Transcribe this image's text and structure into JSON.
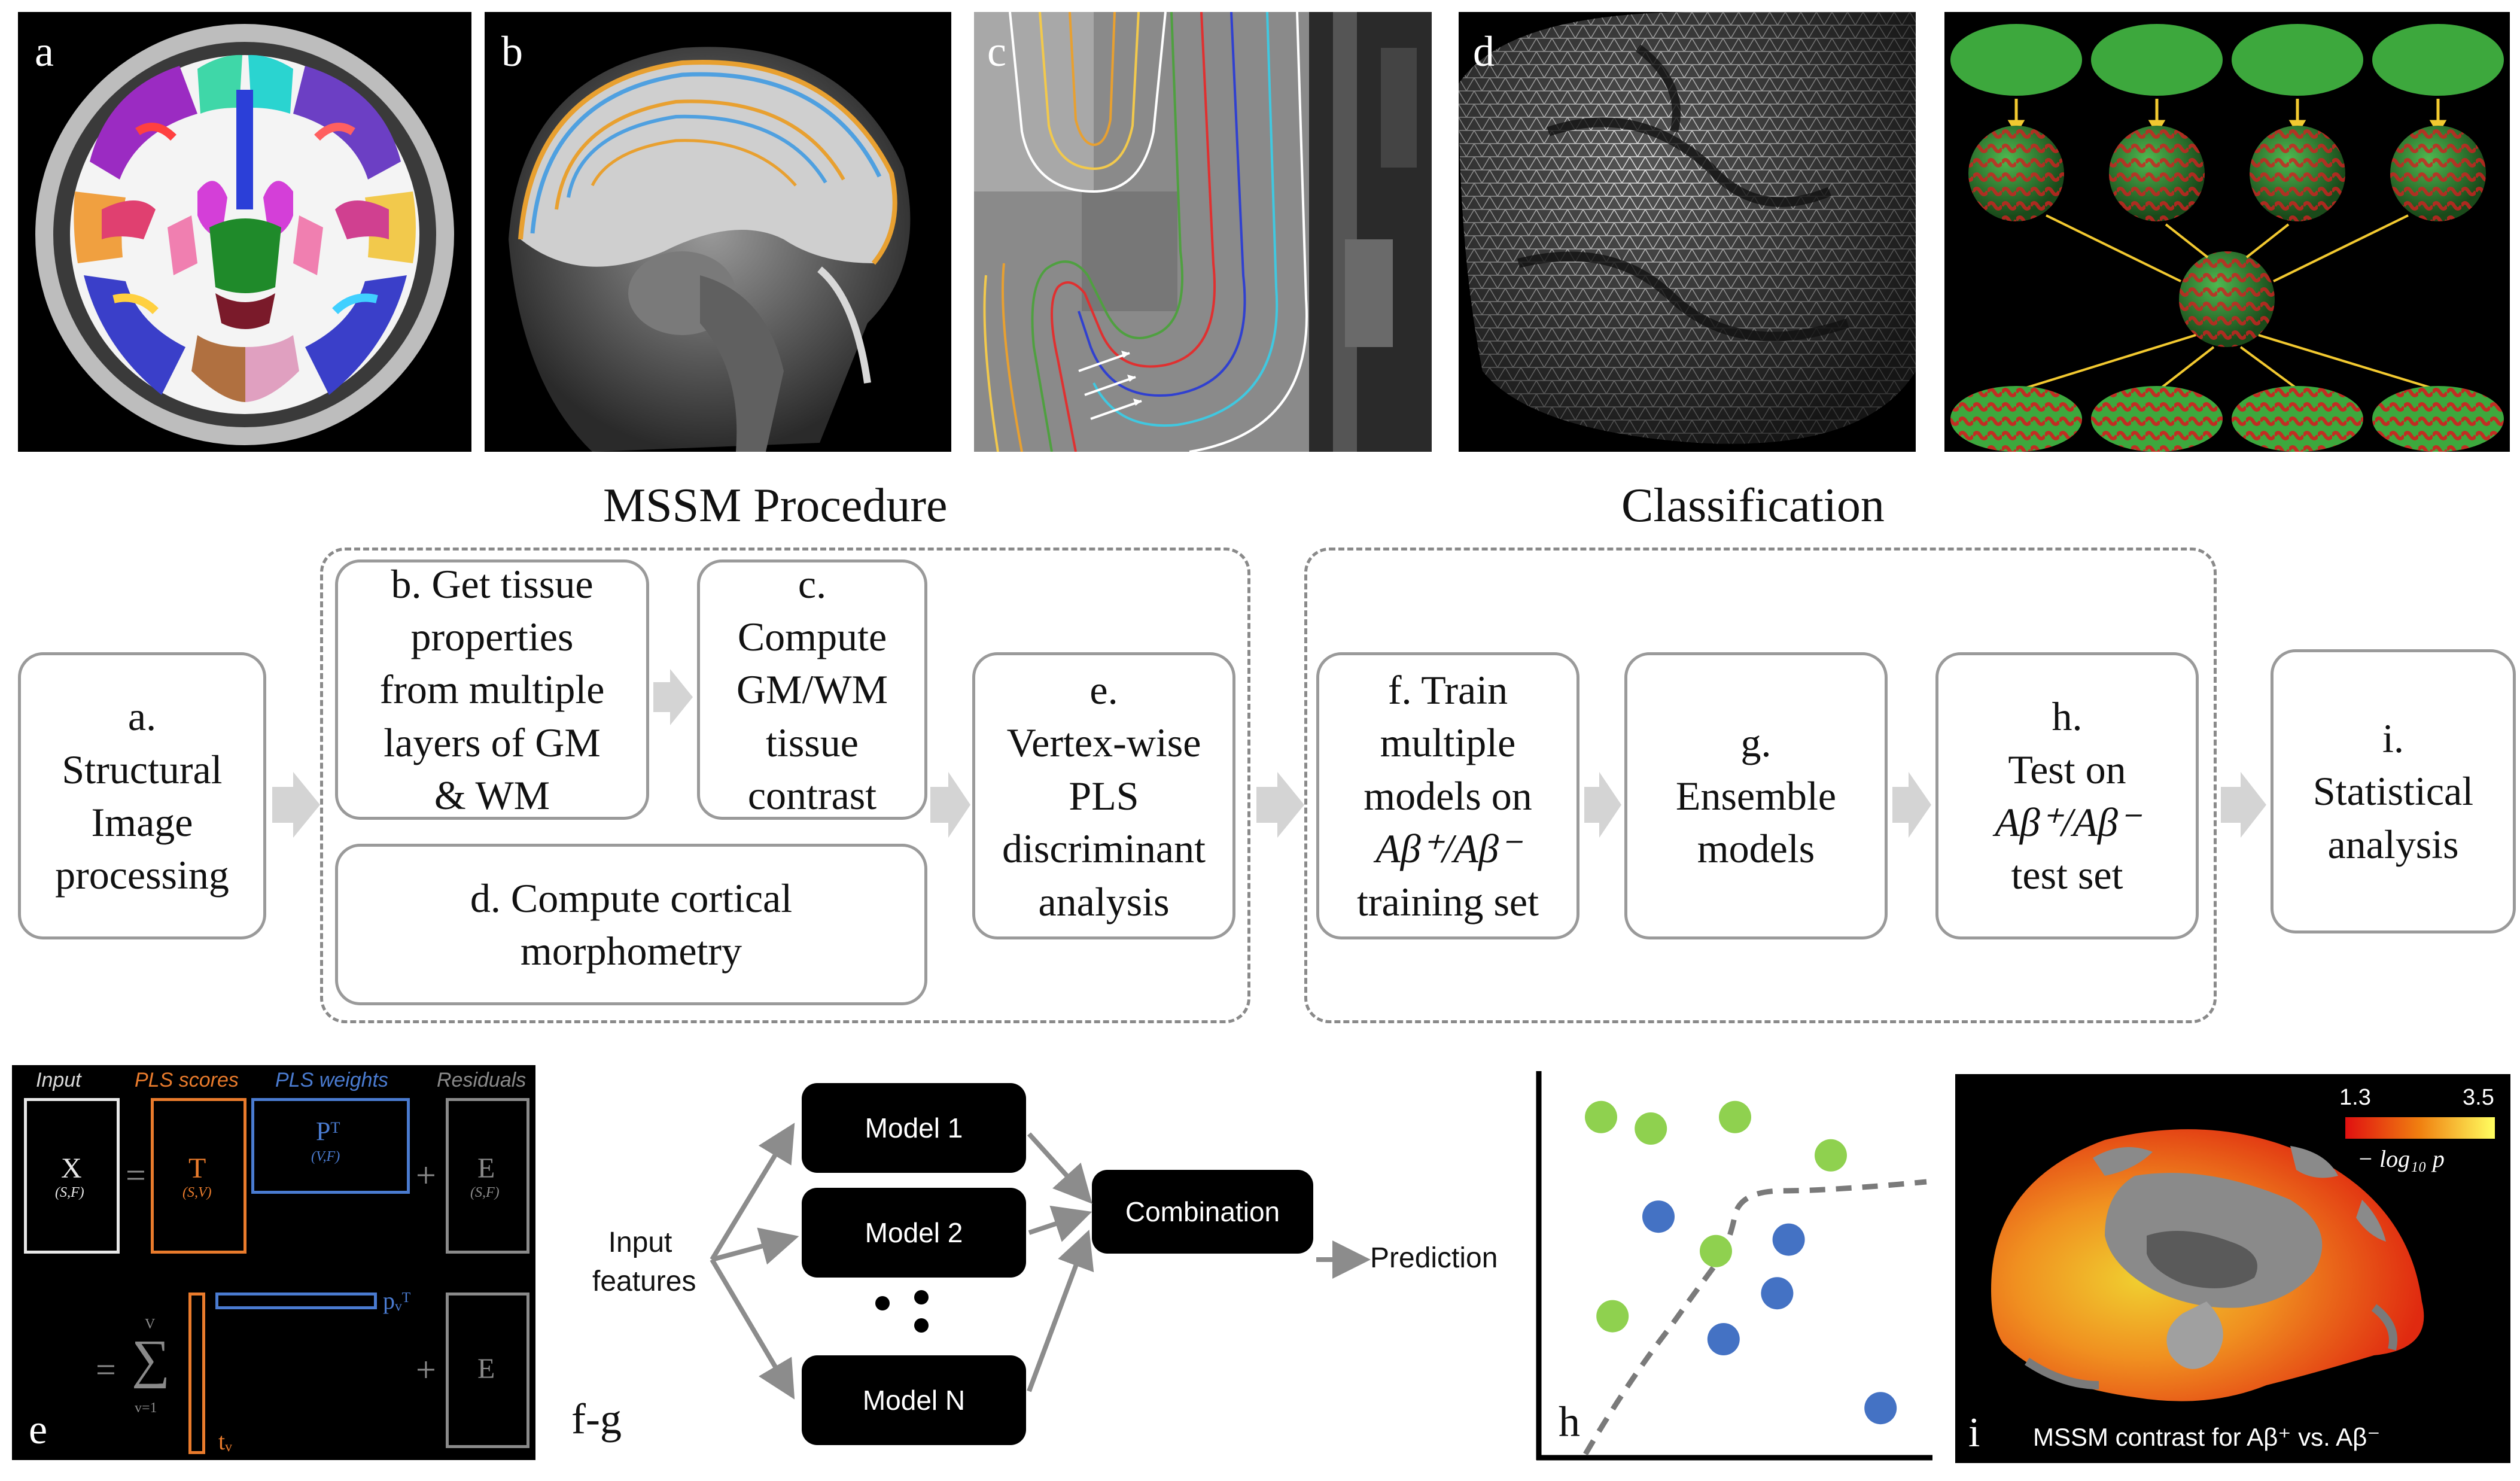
{
  "panels": {
    "a_label": "a",
    "b_label": "b",
    "c_label": "c",
    "d_label": "d",
    "e_label": "e",
    "fg_label": "f-g",
    "h_label": "h",
    "i_label": "i"
  },
  "sections": {
    "mssm": "MSSM Procedure",
    "classification": "Classification"
  },
  "steps": {
    "a_l1": "a.",
    "a_l2": "Structural",
    "a_l3": "Image",
    "a_l4": "processing",
    "b_l1": "b. Get tissue",
    "b_l2": "properties",
    "b_l3": "from multiple",
    "b_l4": "layers of GM",
    "b_l5": "& WM",
    "c_l1": "c.",
    "c_l2": "Compute",
    "c_l3": "GM/WM",
    "c_l4": "tissue",
    "c_l5": "contrast",
    "d_l1": "d. Compute cortical",
    "d_l2": "morphometry",
    "e_l1": "e.",
    "e_l2": "Vertex-wise",
    "e_l3": "PLS",
    "e_l4": "discriminant",
    "e_l5": "analysis",
    "f_l1": "f. Train",
    "f_l2": "multiple",
    "f_l3": "models on",
    "f_l4": "Aβ⁺/Aβ⁻",
    "f_l5": "training set",
    "g_l1": "g.",
    "g_l2": "Ensemble",
    "g_l3": "models",
    "h_l1": "h.",
    "h_l2": "Test on",
    "h_l3": "Aβ⁺/Aβ⁻",
    "h_l4": "test set",
    "i_l1": "i.",
    "i_l2": "Statistical",
    "i_l3": "analysis"
  },
  "pls": {
    "input": "Input",
    "scores": "PLS scores",
    "weights": "PLS weights",
    "residuals": "Residuals",
    "X": "X",
    "X_dim": "(S,F)",
    "T": "T",
    "T_dim": "(S,V)",
    "P": "Pᵀ",
    "P_dim": "(V,F)",
    "E": "E",
    "E_dim": "(S,F)",
    "eq": "=",
    "plus": "+",
    "sum": "∑",
    "sum_top": "V",
    "sum_bottom": "v=1",
    "pv": "pᵥᵀ",
    "tv": "tᵥ",
    "E2": "E"
  },
  "ensemble": {
    "input_l1": "Input",
    "input_l2": "features",
    "model1": "Model 1",
    "model2": "Model 2",
    "modelN": "Model N",
    "combination": "Combination",
    "prediction": "Prediction"
  },
  "brain_map": {
    "cbar_min": "1.3",
    "cbar_max": "3.5",
    "cbar_label": "− log₁₀ p",
    "caption": "MSSM contrast for Aβ⁺ vs. Aβ⁻"
  },
  "colors": {
    "gray_arrow": "#d4d4d4",
    "box_border": "#9a9a9a",
    "green_point": "#8fd14f",
    "blue_point": "#4472c4",
    "pls_orange": "#e97b2c",
    "pls_blue": "#4a7bd0",
    "pls_gray": "#8a8a8a"
  },
  "chart_data": {
    "type": "scatter",
    "series": [
      {
        "values": [
          [
            0.15,
            0.88
          ],
          [
            0.28,
            0.85
          ],
          [
            0.5,
            0.88
          ],
          [
            0.75,
            0.78
          ],
          [
            0.45,
            0.53
          ],
          [
            0.18,
            0.36
          ]
        ]
      },
      {
        "values": [
          [
            0.3,
            0.62
          ],
          [
            0.64,
            0.56
          ],
          [
            0.61,
            0.42
          ],
          [
            0.47,
            0.3
          ],
          [
            0.88,
            0.12
          ]
        ]
      }
    ]
  }
}
